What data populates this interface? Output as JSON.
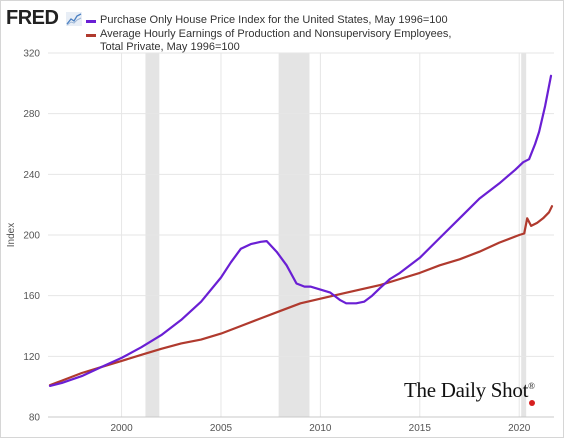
{
  "logo": {
    "text": "FRED"
  },
  "watermark": {
    "text": "The Daily Shot",
    "mark": "®"
  },
  "chart_data": {
    "type": "line",
    "title": "",
    "xlabel": "",
    "ylabel": "Index",
    "xlim": [
      1996.3,
      2021.75
    ],
    "ylim": [
      80,
      320
    ],
    "yticks": [
      80,
      120,
      160,
      200,
      240,
      280,
      320
    ],
    "xticks": [
      2000,
      2005,
      2010,
      2015,
      2020
    ],
    "ytick_labels": [
      "80",
      "120",
      "160",
      "200",
      "240",
      "280",
      "320"
    ],
    "xtick_labels": [
      "2000",
      "2005",
      "2010",
      "2015",
      "2020"
    ],
    "grid": true,
    "legend_position": "top-left",
    "recessions": [
      [
        2001.2,
        2001.9
      ],
      [
        2007.9,
        2009.45
      ],
      [
        2020.1,
        2020.35
      ]
    ],
    "series": [
      {
        "name": "Purchase Only House Price Index for the United States, May 1996=100",
        "color": "#6a1fd4",
        "x": [
          1996.4,
          1997.0,
          1998.0,
          1999.0,
          2000.0,
          2001.0,
          2002.0,
          2003.0,
          2004.0,
          2005.0,
          2005.5,
          2006.0,
          2006.5,
          2007.0,
          2007.3,
          2007.8,
          2008.3,
          2008.8,
          2009.2,
          2009.5,
          2010.0,
          2010.5,
          2011.0,
          2011.3,
          2011.8,
          2012.2,
          2012.6,
          2013.0,
          2013.5,
          2014.0,
          2015.0,
          2016.0,
          2017.0,
          2018.0,
          2019.0,
          2019.8,
          2020.2,
          2020.5,
          2020.8,
          2021.0,
          2021.3,
          2021.6
        ],
        "values": [
          100.5,
          102.5,
          107,
          113,
          119,
          126,
          134,
          144,
          156,
          172,
          182,
          191,
          194,
          195.5,
          196,
          189,
          180,
          168,
          166,
          166,
          164,
          162,
          157,
          155,
          155,
          156,
          160,
          165,
          171,
          175,
          185,
          198,
          211,
          224,
          234,
          243,
          248,
          250,
          260,
          268,
          285,
          305
        ]
      },
      {
        "name": "Average Hourly Earnings of Production and Nonsupervisory Employees, Total Private, May 1996=100",
        "color": "#b03a2e",
        "x": [
          1996.4,
          1997.0,
          1998.0,
          1999.0,
          2000.0,
          2001.0,
          2002.0,
          2003.0,
          2004.0,
          2005.0,
          2006.0,
          2007.0,
          2008.0,
          2009.0,
          2010.0,
          2011.0,
          2012.0,
          2013.0,
          2014.0,
          2015.0,
          2016.0,
          2017.0,
          2018.0,
          2019.0,
          2020.0,
          2020.25,
          2020.4,
          2020.6,
          2020.9,
          2021.2,
          2021.5,
          2021.65
        ],
        "values": [
          101,
          104,
          109,
          113,
          117,
          121,
          125,
          128.5,
          131,
          135,
          140,
          145,
          150,
          155,
          158,
          161,
          164,
          167,
          171,
          175,
          180,
          184,
          189,
          195,
          200,
          201,
          211,
          206,
          208,
          211,
          215,
          219
        ]
      }
    ]
  }
}
